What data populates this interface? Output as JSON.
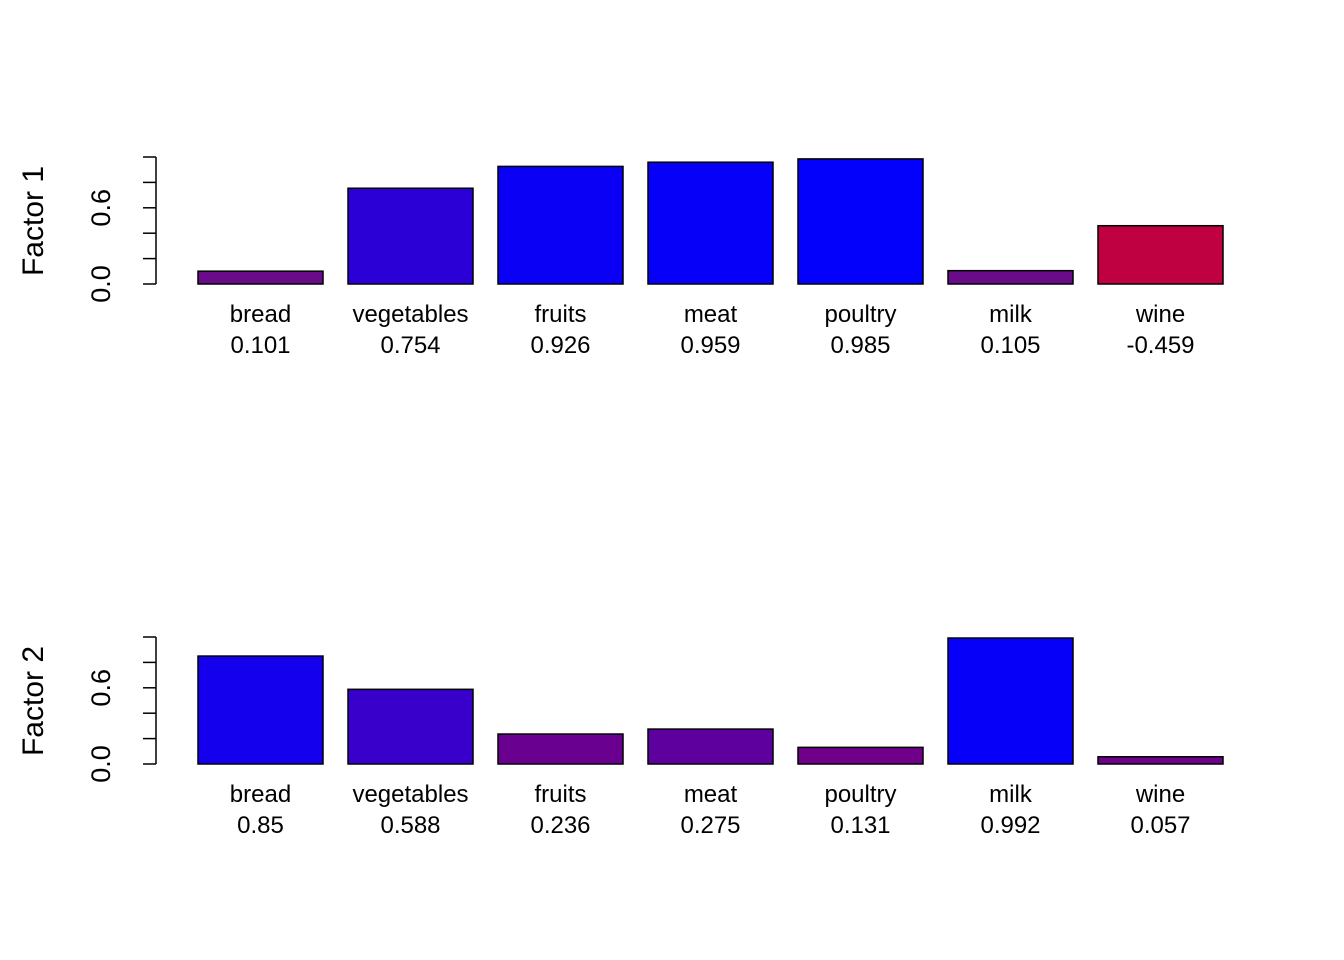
{
  "chart_data": [
    {
      "type": "bar",
      "title": "",
      "xlabel": "",
      "ylabel": "Factor 1",
      "ylim": [
        0,
        1.0
      ],
      "yticks": [
        0.0,
        0.2,
        0.4,
        0.6,
        0.8,
        1.0
      ],
      "ytick_labels": [
        "0.0",
        "",
        "",
        "0.6",
        "",
        ""
      ],
      "categories": [
        "bread",
        "vegetables",
        "fruits",
        "meat",
        "poultry",
        "milk",
        "wine"
      ],
      "values": [
        0.101,
        0.754,
        0.926,
        0.959,
        0.985,
        0.105,
        -0.459
      ],
      "value_labels": [
        "0.101",
        "0.754",
        "0.926",
        "0.959",
        "0.985",
        "0.105",
        "-0.459"
      ],
      "colors": [
        "#6A0C8A",
        "#2A00D6",
        "#0A00F6",
        "#0600F9",
        "#0300FC",
        "#6A0C8A",
        "#BF0041"
      ],
      "grid": false
    },
    {
      "type": "bar",
      "title": "",
      "xlabel": "",
      "ylabel": "Factor 2",
      "ylim": [
        0,
        1.0
      ],
      "yticks": [
        0.0,
        0.2,
        0.4,
        0.6,
        0.8,
        1.0
      ],
      "ytick_labels": [
        "0.0",
        "",
        "",
        "0.6",
        "",
        ""
      ],
      "categories": [
        "bread",
        "vegetables",
        "fruits",
        "meat",
        "poultry",
        "milk",
        "wine"
      ],
      "values": [
        0.85,
        0.588,
        0.236,
        0.275,
        0.131,
        0.992,
        0.057
      ],
      "value_labels": [
        "0.85",
        "0.588",
        "0.236",
        "0.275",
        "0.131",
        "0.992",
        "0.057"
      ],
      "colors": [
        "#1400EC",
        "#3800CA",
        "#6A0090",
        "#5E009E",
        "#70008A",
        "#0700F8",
        "#6E008C"
      ],
      "grid": false
    }
  ]
}
